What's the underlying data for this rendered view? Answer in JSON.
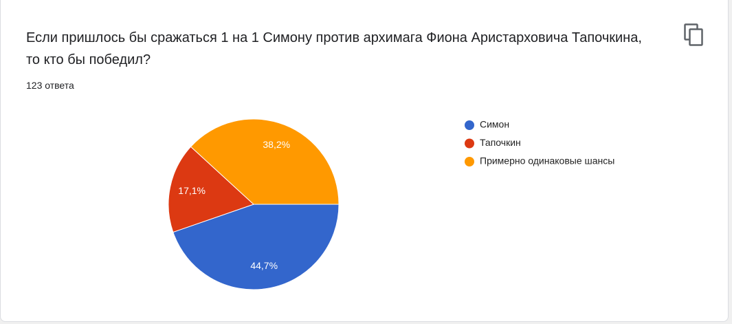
{
  "chart_data": {
    "type": "pie",
    "title": "Если пришлось бы сражаться 1 на 1 Симону против архимага Фиона Аристарховича Тапочкина, то кто бы победил?",
    "subtitle": "123 ответа",
    "categories": [
      "Симон",
      "Тапочкин",
      "Примерно одинаковые шансы"
    ],
    "values": [
      44.7,
      17.1,
      38.2
    ],
    "value_labels": [
      "44,7%",
      "17,1%",
      "38,2%"
    ],
    "colors": [
      "#3366cc",
      "#dc3912",
      "#ff9900"
    ]
  }
}
